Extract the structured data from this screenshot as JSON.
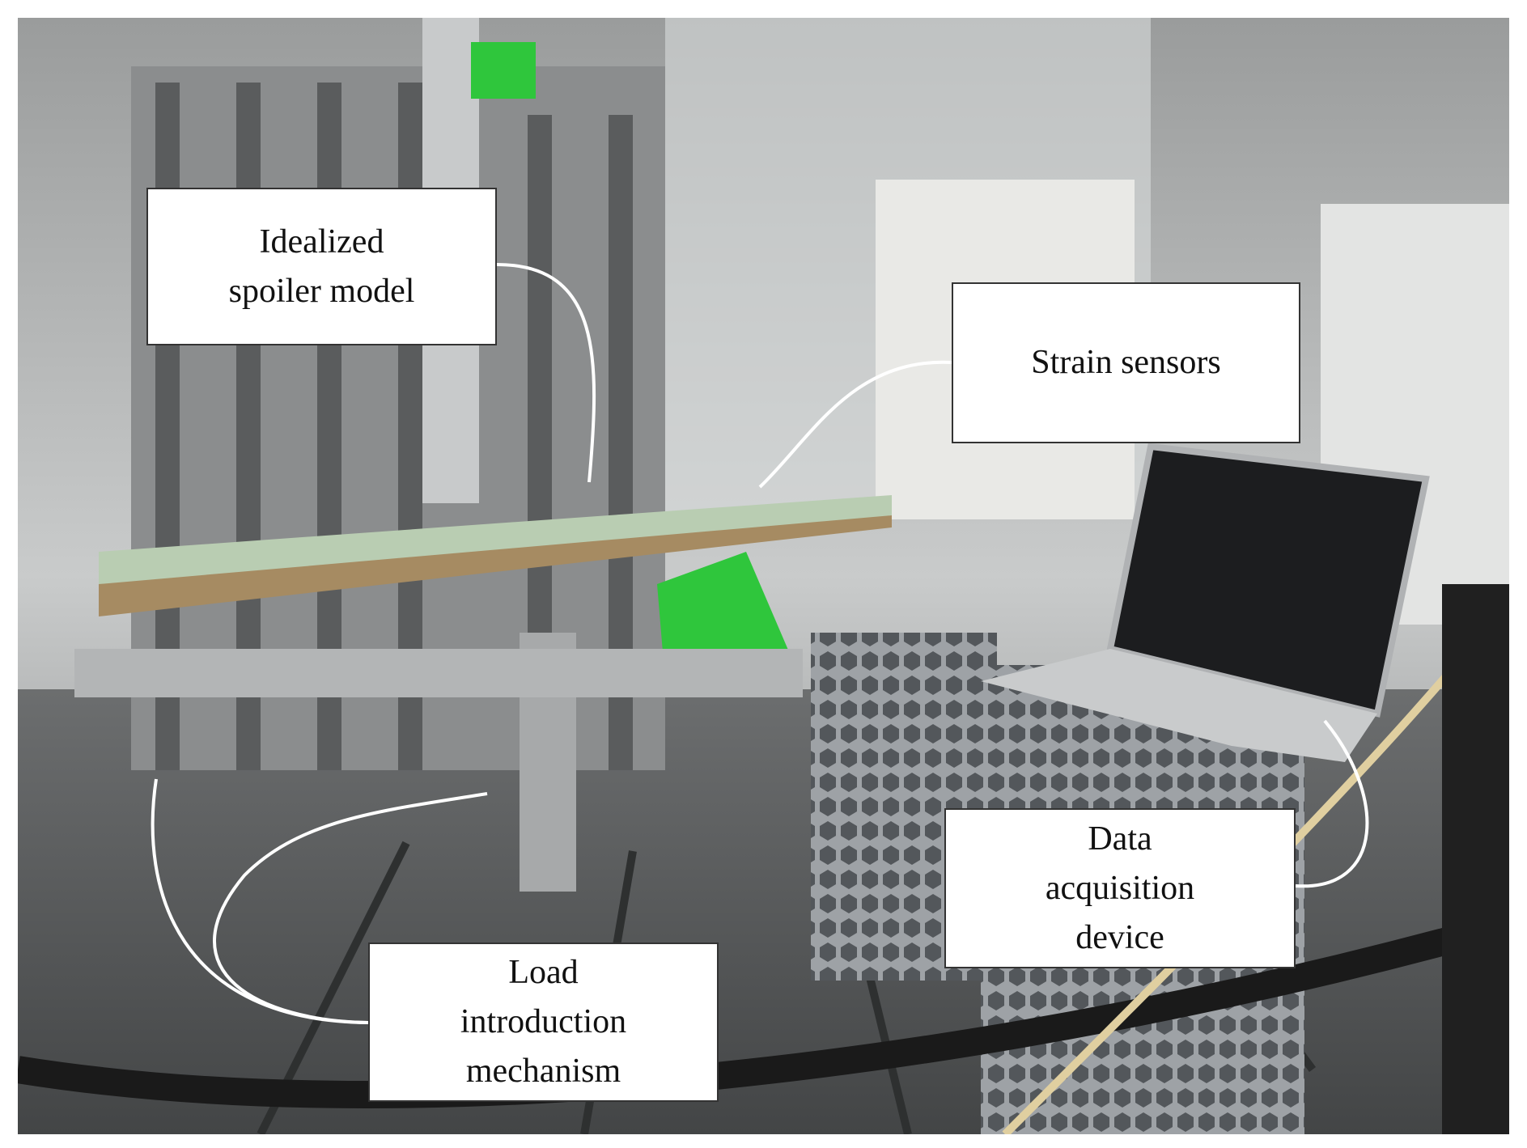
{
  "figure": {
    "callouts": [
      {
        "lines": [
          "Idealized",
          "spoiler model"
        ]
      },
      {
        "lines": [
          "Strain sensors"
        ]
      },
      {
        "lines": [
          "Data",
          "acquisition",
          "device"
        ]
      },
      {
        "lines": [
          "Load",
          "introduction",
          "mechanism"
        ]
      }
    ],
    "colors": {
      "callout_background": "#ffffff",
      "leader_line": "#ffffff",
      "specimen_panel": "#b9cdb2",
      "green_fixture": "#2fc63c",
      "crate": "#8f9498",
      "floor": "#5d5f60"
    }
  }
}
